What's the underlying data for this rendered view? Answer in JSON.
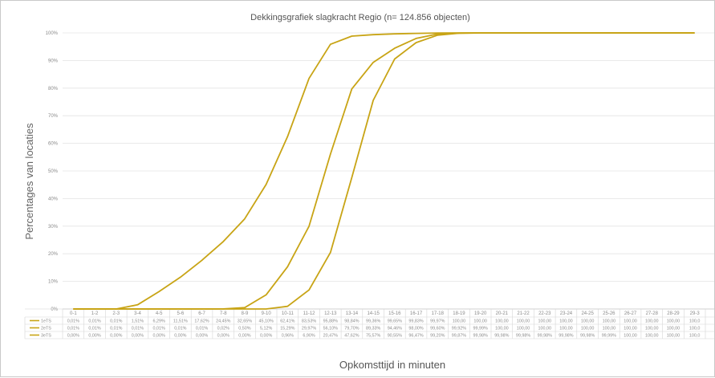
{
  "chart_data": {
    "type": "line",
    "title": "Dekkingsgrafiek slagkracht    Regio    (n= 124.856 objecten)",
    "xlabel": "Opkomsttijd in minuten",
    "ylabel": "Percentages van locaties",
    "ylim": [
      0,
      100
    ],
    "yticks": [
      "0%",
      "10%",
      "20%",
      "30%",
      "40%",
      "50%",
      "60%",
      "70%",
      "80%",
      "90%",
      "100%"
    ],
    "grid": true,
    "legend": "data-table",
    "color": "#c8a415",
    "categories": [
      "0-1",
      "1-2",
      "2-3",
      "3-4",
      "4-5",
      "5-6",
      "6-7",
      "7-8",
      "8-9",
      "9-10",
      "10-11",
      "11-12",
      "12-13",
      "13-14",
      "14-15",
      "15-16",
      "16-17",
      "17-18",
      "18-19",
      "19-20",
      "20-21",
      "21-22",
      "22-23",
      "23-24",
      "24-25",
      "25-26",
      "26-27",
      "27-28",
      "28-29",
      "29-3"
    ],
    "series": [
      {
        "name": "1eTS",
        "values": [
          0.01,
          0.01,
          0.01,
          1.51,
          6.29,
          11.51,
          17.62,
          24.45,
          32.65,
          45.1,
          62.41,
          83.53,
          95.88,
          98.84,
          99.36,
          99.65,
          99.83,
          99.97,
          100,
          100,
          100,
          100,
          100,
          100,
          100,
          100,
          100,
          100,
          100,
          100
        ],
        "labels": [
          "0,01%",
          "0,01%",
          "0,01%",
          "1,51%",
          "6,29%",
          "11,51%",
          "17,62%",
          "24,45%",
          "32,65%",
          "45,10%",
          "62,41%",
          "83,53%",
          "95,88%",
          "98,84%",
          "99,36%",
          "99,65%",
          "99,83%",
          "99,97%",
          "100,00",
          "100,00",
          "100,00",
          "100,00",
          "100,00",
          "100,00",
          "100,00",
          "100,00",
          "100,00",
          "100,00",
          "100,00",
          "100,0"
        ]
      },
      {
        "name": "2eTS",
        "values": [
          0.01,
          0.01,
          0.01,
          0.01,
          0.01,
          0.01,
          0.01,
          0.02,
          0.5,
          5.12,
          15.29,
          29.97,
          56.1,
          79.7,
          89.33,
          94.46,
          98.0,
          99.6,
          99.92,
          99.99,
          100,
          100,
          100,
          100,
          100,
          100,
          100,
          100,
          100,
          100
        ],
        "labels": [
          "0,01%",
          "0,01%",
          "0,01%",
          "0,01%",
          "0,01%",
          "0,01%",
          "0,01%",
          "0,02%",
          "0,50%",
          "5,12%",
          "15,29%",
          "29,97%",
          "56,10%",
          "79,70%",
          "89,33%",
          "94,46%",
          "98,00%",
          "99,60%",
          "99,92%",
          "99,99%",
          "100,00",
          "100,00",
          "100,00",
          "100,00",
          "100,00",
          "100,00",
          "100,00",
          "100,00",
          "100,00",
          "100,0"
        ]
      },
      {
        "name": "3eTS",
        "values": [
          0,
          0,
          0,
          0,
          0,
          0,
          0,
          0,
          0,
          0,
          0.96,
          6.9,
          20.47,
          47.62,
          75.57,
          90.55,
          96.47,
          99.2,
          99.87,
          99.98,
          99.98,
          99.98,
          99.98,
          99.98,
          99.98,
          99.99,
          100,
          100,
          100,
          100
        ],
        "labels": [
          "0,00%",
          "0,00%",
          "0,00%",
          "0,00%",
          "0,00%",
          "0,00%",
          "0,00%",
          "0,00%",
          "0,00%",
          "0,00%",
          "0,96%",
          "6,90%",
          "20,47%",
          "47,62%",
          "75,57%",
          "90,55%",
          "96,47%",
          "99,20%",
          "99,87%",
          "99,98%",
          "99,98%",
          "99,98%",
          "99,98%",
          "99,98%",
          "99,98%",
          "99,99%",
          "100,00",
          "100,00",
          "100,00",
          "100,0"
        ]
      }
    ]
  }
}
